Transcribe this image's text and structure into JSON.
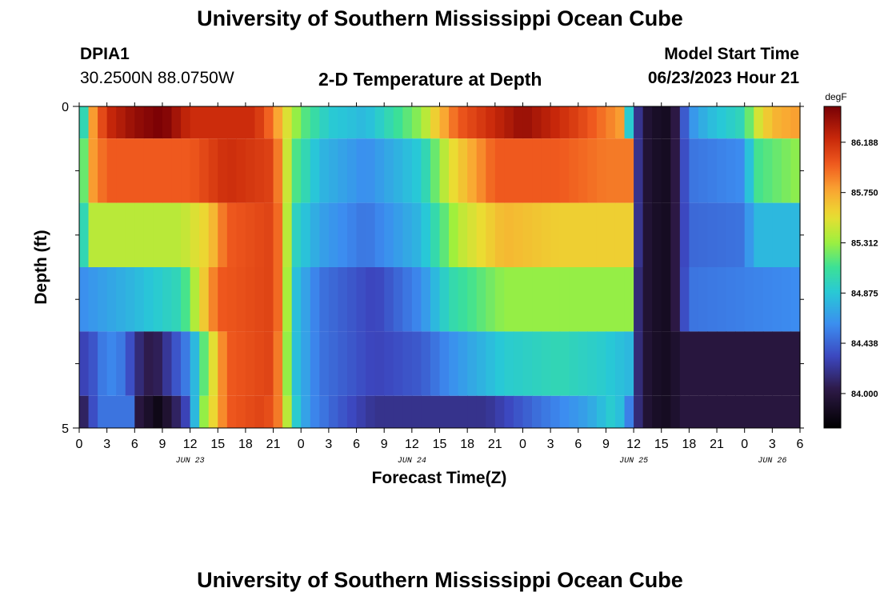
{
  "header": {
    "title": "University of Southern Mississippi Ocean Cube",
    "station": "DPIA1",
    "coords": "30.2500N  88.0750W",
    "chart_title": "2-D Temperature at Depth",
    "model_label": "Model Start Time",
    "model_time": "06/23/2023 Hour 21"
  },
  "footer": {
    "title": "University of Southern Mississippi Ocean Cube"
  },
  "chart_data": {
    "type": "heatmap",
    "title": "2-D Temperature at Depth",
    "xlabel": "Forecast Time(Z)",
    "ylabel": "Depth (ft)",
    "ylim": [
      0,
      5
    ],
    "y_ticks": [
      "0",
      "5"
    ],
    "x_ticks": [
      "0",
      "3",
      "6",
      "9",
      "12",
      "15",
      "18",
      "21",
      "0",
      "3",
      "6",
      "9",
      "12",
      "15",
      "18",
      "21",
      "0",
      "3",
      "6",
      "9",
      "12",
      "15",
      "18",
      "21",
      "0",
      "3",
      "6"
    ],
    "date_labels": [
      {
        "label": "JUN 23",
        "hour": 12
      },
      {
        "label": "JUN 24",
        "hour": 36
      },
      {
        "label": "JUN 25",
        "hour": 60
      },
      {
        "label": "JUN 26",
        "hour": 75
      }
    ],
    "x_range_hours": [
      0,
      78
    ],
    "colorbar": {
      "unit": "degF",
      "ticks": [
        "86.188",
        "85.750",
        "85.312",
        "84.875",
        "84.438",
        "84.000"
      ],
      "range": [
        83.7,
        86.5
      ]
    },
    "depth_bands": [
      0,
      0.5,
      1.5,
      2.5,
      3.5,
      4.5,
      5
    ],
    "layers": [
      {
        "knots": [
          [
            0,
            85.3
          ],
          [
            0.5,
            85.0
          ],
          [
            1.5,
            85.8
          ],
          [
            3,
            86.2
          ],
          [
            6,
            86.4
          ],
          [
            9,
            86.5
          ],
          [
            12,
            86.2
          ],
          [
            16,
            86.2
          ],
          [
            19,
            86.2
          ],
          [
            21,
            85.9
          ],
          [
            22.5,
            85.5
          ],
          [
            24,
            85.2
          ],
          [
            27,
            84.9
          ],
          [
            31,
            84.8
          ],
          [
            37,
            85.3
          ],
          [
            38.5,
            85.6
          ],
          [
            41,
            86.0
          ],
          [
            48,
            86.4
          ],
          [
            54,
            86.1
          ],
          [
            57,
            85.9
          ],
          [
            58.5,
            85.8
          ],
          [
            59.5,
            84.9
          ],
          [
            60,
            84.4
          ],
          [
            61,
            84.0
          ],
          [
            62,
            83.9
          ],
          [
            64,
            83.85
          ],
          [
            65,
            84.2
          ],
          [
            66,
            84.6
          ],
          [
            68,
            84.8
          ],
          [
            72,
            85.0
          ],
          [
            73,
            85.4
          ],
          [
            75,
            85.7
          ],
          [
            78,
            85.8
          ]
        ]
      },
      {
        "knots": [
          [
            0,
            85.2
          ],
          [
            0.5,
            85.2
          ],
          [
            1.5,
            85.8
          ],
          [
            3,
            86.0
          ],
          [
            12,
            86.0
          ],
          [
            16,
            86.2
          ],
          [
            21,
            86.1
          ],
          [
            22,
            85.7
          ],
          [
            23,
            85.2
          ],
          [
            26,
            84.8
          ],
          [
            31,
            84.6
          ],
          [
            37,
            84.9
          ],
          [
            40,
            85.5
          ],
          [
            45,
            86.0
          ],
          [
            52,
            86.0
          ],
          [
            57,
            85.9
          ],
          [
            59.5,
            85.9
          ],
          [
            60,
            84.4
          ],
          [
            61,
            84.0
          ],
          [
            62,
            83.9
          ],
          [
            64,
            83.85
          ],
          [
            65,
            84.2
          ],
          [
            66,
            84.5
          ],
          [
            72,
            84.6
          ],
          [
            73,
            85.1
          ],
          [
            78,
            85.3
          ]
        ]
      },
      {
        "knots": [
          [
            0,
            84.9
          ],
          [
            0.5,
            85.0
          ],
          [
            1.5,
            85.4
          ],
          [
            11,
            85.4
          ],
          [
            14,
            85.6
          ],
          [
            16,
            86.0
          ],
          [
            21,
            86.1
          ],
          [
            22,
            85.8
          ],
          [
            23,
            85.0
          ],
          [
            26,
            84.7
          ],
          [
            31,
            84.5
          ],
          [
            37,
            84.8
          ],
          [
            41,
            85.4
          ],
          [
            46,
            85.7
          ],
          [
            52,
            85.6
          ],
          [
            57,
            85.6
          ],
          [
            59.5,
            85.6
          ],
          [
            60,
            84.4
          ],
          [
            61,
            84.0
          ],
          [
            62,
            83.9
          ],
          [
            64,
            83.85
          ],
          [
            65,
            84.2
          ],
          [
            66,
            84.45
          ],
          [
            72,
            84.5
          ],
          [
            73,
            84.8
          ],
          [
            78,
            84.8
          ]
        ]
      },
      {
        "knots": [
          [
            0,
            84.6
          ],
          [
            3,
            84.7
          ],
          [
            6,
            84.8
          ],
          [
            11,
            85.0
          ],
          [
            13,
            85.5
          ],
          [
            15,
            86.0
          ],
          [
            21,
            86.1
          ],
          [
            22,
            85.8
          ],
          [
            23,
            84.9
          ],
          [
            26,
            84.5
          ],
          [
            32,
            84.3
          ],
          [
            37,
            84.6
          ],
          [
            40,
            85.0
          ],
          [
            46,
            85.3
          ],
          [
            52,
            85.3
          ],
          [
            57,
            85.3
          ],
          [
            59.5,
            85.3
          ],
          [
            60,
            84.3
          ],
          [
            61,
            84.0
          ],
          [
            62,
            83.9
          ],
          [
            64,
            83.85
          ],
          [
            65,
            84.2
          ],
          [
            66,
            84.5
          ],
          [
            78,
            84.6
          ]
        ]
      },
      {
        "knots": [
          [
            0,
            84.3
          ],
          [
            1,
            84.3
          ],
          [
            3,
            84.6
          ],
          [
            5,
            84.5
          ],
          [
            6,
            84.2
          ],
          [
            8,
            84.0
          ],
          [
            10,
            84.3
          ],
          [
            12,
            84.6
          ],
          [
            13,
            85.0
          ],
          [
            15,
            85.7
          ],
          [
            16,
            86.0
          ],
          [
            21,
            86.1
          ],
          [
            22,
            85.7
          ],
          [
            23,
            84.9
          ],
          [
            26,
            84.5
          ],
          [
            32,
            84.3
          ],
          [
            37,
            84.4
          ],
          [
            40,
            84.6
          ],
          [
            46,
            84.9
          ],
          [
            52,
            85.0
          ],
          [
            57,
            84.9
          ],
          [
            59.5,
            84.8
          ],
          [
            60,
            84.3
          ],
          [
            61,
            84.0
          ],
          [
            62,
            83.9
          ],
          [
            64,
            83.85
          ],
          [
            65,
            84.0
          ],
          [
            66,
            84.0
          ],
          [
            78,
            84.0
          ]
        ]
      },
      {
        "knots": [
          [
            0,
            84.0
          ],
          [
            1,
            84.2
          ],
          [
            2,
            84.5
          ],
          [
            5.5,
            84.5
          ],
          [
            6.5,
            84.0
          ],
          [
            7.5,
            83.9
          ],
          [
            7.6,
            83.2
          ],
          [
            8.3,
            83.2
          ],
          [
            8.4,
            83.8
          ],
          [
            10,
            84.0
          ],
          [
            11.5,
            84.3
          ],
          [
            12.5,
            84.8
          ],
          [
            13.5,
            85.3
          ],
          [
            15,
            85.7
          ],
          [
            16,
            86.0
          ],
          [
            20,
            86.1
          ],
          [
            21,
            86.0
          ],
          [
            22,
            85.8
          ],
          [
            23,
            85.0
          ],
          [
            25,
            84.6
          ],
          [
            28,
            84.4
          ],
          [
            32,
            84.2
          ],
          [
            37,
            84.2
          ],
          [
            44,
            84.2
          ],
          [
            50,
            84.5
          ],
          [
            55,
            84.7
          ],
          [
            57.5,
            84.9
          ],
          [
            59,
            84.8
          ],
          [
            60,
            84.3
          ],
          [
            61,
            84.0
          ],
          [
            62,
            83.9
          ],
          [
            64,
            83.85
          ],
          [
            65,
            84.0
          ],
          [
            66,
            84.0
          ],
          [
            78,
            84.0
          ]
        ]
      }
    ]
  }
}
